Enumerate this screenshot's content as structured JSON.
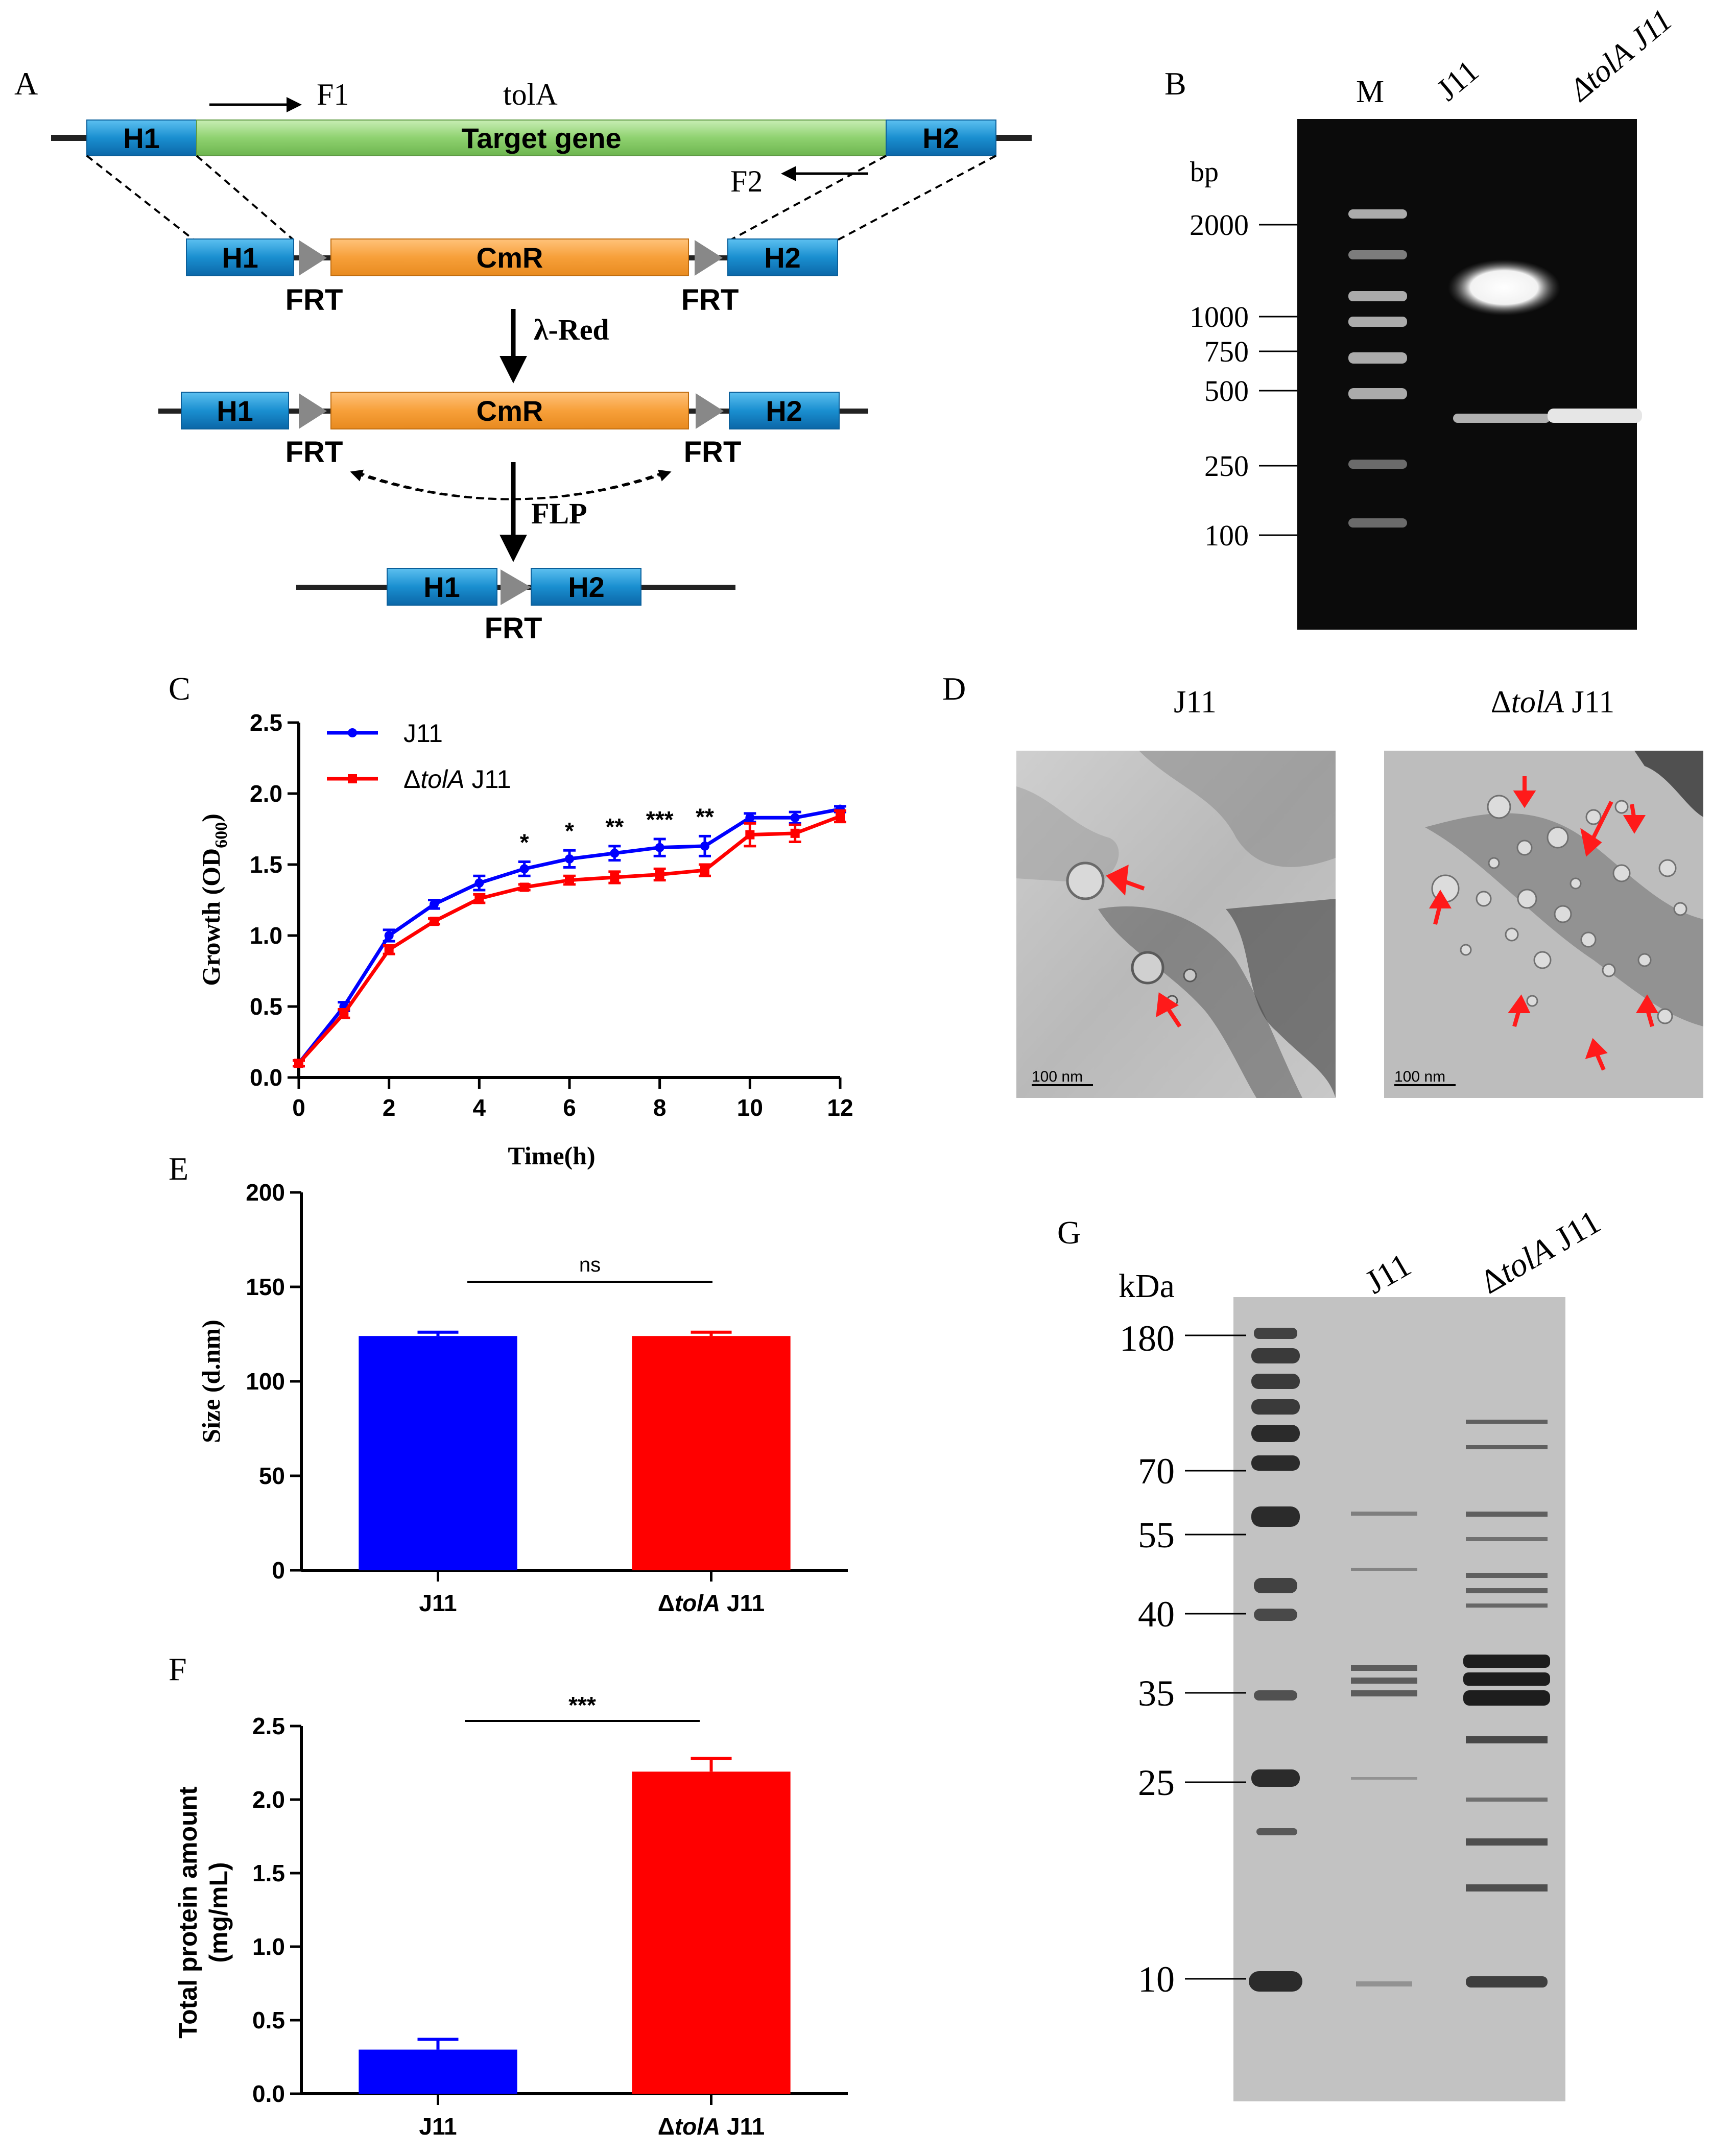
{
  "panels": {
    "A": "A",
    "B": "B",
    "C": "C",
    "D": "D",
    "E": "E",
    "F": "F",
    "G": "G"
  },
  "panel_a": {
    "gene_name": "tolA",
    "primer_f1": "F1",
    "primer_f2": "F2",
    "target_label": "Target gene",
    "h1": "H1",
    "h2": "H2",
    "cmr": "CmR",
    "frt": "FRT",
    "step1": "λ-Red",
    "step2": "FLP",
    "colors": {
      "homology": "#1a8fd0",
      "target": "#8fd270",
      "cmr": "#f7a03a"
    }
  },
  "panel_b": {
    "unit": "bp",
    "lanes": [
      "M",
      "J11",
      "ΔtolA J11"
    ],
    "markers": [
      "2000",
      "1000",
      "750",
      "500",
      "250",
      "100"
    ]
  },
  "panel_d": {
    "titles": [
      "J11",
      "ΔtolA J11"
    ],
    "scale_bar": "100 nm"
  },
  "panel_g": {
    "unit": "kDa",
    "lanes": [
      "J11",
      "ΔtolA J11"
    ],
    "markers": [
      "180",
      "70",
      "55",
      "40",
      "35",
      "25",
      "10"
    ]
  },
  "chart_data": [
    {
      "panel": "C",
      "type": "line",
      "xlabel": "Time(h)",
      "ylabel": "Growth (OD600)",
      "xlim": [
        0,
        12
      ],
      "ylim": [
        0,
        2.5
      ],
      "xticks": [
        "0",
        "2",
        "4",
        "6",
        "8",
        "10",
        "12"
      ],
      "yticks": [
        "0.0",
        "0.5",
        "1.0",
        "1.5",
        "2.0",
        "2.5"
      ],
      "x": [
        0,
        1,
        2,
        3,
        4,
        5,
        6,
        7,
        8,
        9,
        10,
        11,
        12
      ],
      "series": [
        {
          "name": "J11",
          "color": "#0000ff",
          "values": [
            0.1,
            0.5,
            1.0,
            1.22,
            1.37,
            1.47,
            1.54,
            1.58,
            1.62,
            1.63,
            1.83,
            1.83,
            1.89
          ],
          "errors": [
            0.02,
            0.03,
            0.04,
            0.03,
            0.05,
            0.05,
            0.06,
            0.05,
            0.06,
            0.07,
            0.03,
            0.04,
            0.02
          ]
        },
        {
          "name": "ΔtolA J11",
          "color": "#ff0000",
          "values": [
            0.1,
            0.45,
            0.9,
            1.1,
            1.26,
            1.34,
            1.39,
            1.41,
            1.43,
            1.46,
            1.71,
            1.72,
            1.84
          ],
          "errors": [
            0.02,
            0.03,
            0.03,
            0.02,
            0.03,
            0.02,
            0.03,
            0.04,
            0.04,
            0.04,
            0.08,
            0.06,
            0.04
          ]
        }
      ],
      "significance": [
        {
          "x": 5,
          "label": "*"
        },
        {
          "x": 6,
          "label": "*"
        },
        {
          "x": 7,
          "label": "**"
        },
        {
          "x": 8,
          "label": "***"
        },
        {
          "x": 9,
          "label": "**"
        }
      ]
    },
    {
      "panel": "E",
      "type": "bar",
      "categories": [
        "J11",
        "ΔtolA J11"
      ],
      "values": [
        124,
        124
      ],
      "errors": [
        2,
        2
      ],
      "colors": [
        "#0000ff",
        "#ff0000"
      ],
      "ylabel": "Size (d.nm)",
      "ylim": [
        0,
        200
      ],
      "yticks": [
        "0",
        "50",
        "100",
        "150",
        "200"
      ],
      "significance": "ns"
    },
    {
      "panel": "F",
      "type": "bar",
      "categories": [
        "J11",
        "ΔtolA J11"
      ],
      "values": [
        0.3,
        2.19
      ],
      "errors": [
        0.07,
        0.09
      ],
      "colors": [
        "#0000ff",
        "#ff0000"
      ],
      "ylabel": "Total protein amount (mg/mL)",
      "ylim": [
        0,
        2.5
      ],
      "yticks": [
        "0.0",
        "0.5",
        "1.0",
        "1.5",
        "2.0",
        "2.5"
      ],
      "significance": "***"
    }
  ]
}
